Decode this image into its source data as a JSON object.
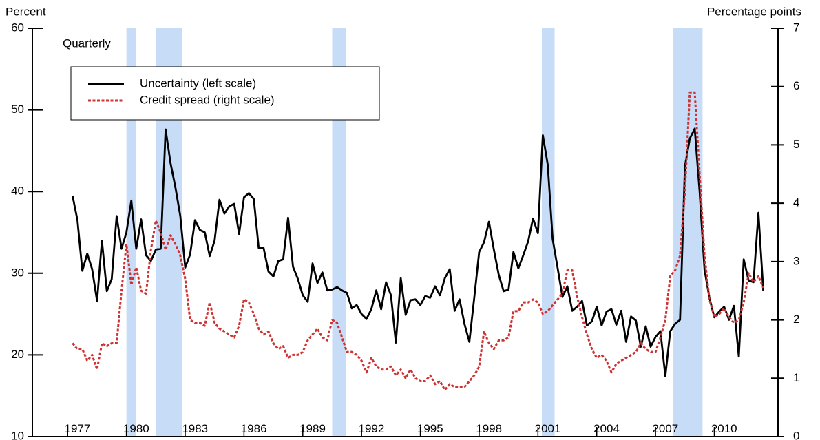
{
  "chart_data": {
    "type": "line",
    "y_label": "Percent",
    "y2_label": "Percentage points",
    "annotation": "Quarterly",
    "x": [
      1977.25,
      1977.5,
      1977.75,
      1978,
      1978.25,
      1978.5,
      1978.75,
      1979,
      1979.25,
      1979.5,
      1979.75,
      1980,
      1980.25,
      1980.5,
      1980.75,
      1981,
      1981.25,
      1981.5,
      1981.75,
      1982,
      1982.25,
      1982.5,
      1982.75,
      1983,
      1983.25,
      1983.5,
      1983.75,
      1984,
      1984.25,
      1984.5,
      1984.75,
      1985,
      1985.25,
      1985.5,
      1985.75,
      1986,
      1986.25,
      1986.5,
      1986.75,
      1987,
      1987.25,
      1987.5,
      1987.75,
      1988,
      1988.25,
      1988.5,
      1988.75,
      1989,
      1989.25,
      1989.5,
      1989.75,
      1990,
      1990.25,
      1990.5,
      1990.75,
      1991,
      1991.25,
      1991.5,
      1991.75,
      1992,
      1992.25,
      1992.5,
      1992.75,
      1993,
      1993.25,
      1993.5,
      1993.75,
      1994,
      1994.25,
      1994.5,
      1994.75,
      1995,
      1995.25,
      1995.5,
      1995.75,
      1996,
      1996.25,
      1996.5,
      1996.75,
      1997,
      1997.25,
      1997.5,
      1997.75,
      1998,
      1998.25,
      1998.5,
      1998.75,
      1999,
      1999.25,
      1999.5,
      1999.75,
      2000,
      2000.25,
      2000.5,
      2000.75,
      2001,
      2001.25,
      2001.5,
      2001.75,
      2002,
      2002.25,
      2002.5,
      2002.75,
      2003,
      2003.25,
      2003.5,
      2003.75,
      2004,
      2004.25,
      2004.5,
      2004.75,
      2005,
      2005.25,
      2005.5,
      2005.75,
      2006,
      2006.25,
      2006.5,
      2006.75,
      2007,
      2007.25,
      2007.5,
      2007.75,
      2008,
      2008.25,
      2008.5,
      2008.75,
      2009,
      2009.25,
      2009.5,
      2009.75,
      2010,
      2010.25,
      2010.5,
      2010.75,
      2011,
      2011.25,
      2011.5,
      2011.75,
      2012,
      2012.25,
      2012.5
    ],
    "series": [
      {
        "name": "Uncertainty (left scale)",
        "color": "#000000",
        "dash": "none",
        "values": [
          39.5,
          36.5,
          30.3,
          32.4,
          30.5,
          26.6,
          34.0,
          27.8,
          29.3,
          37.0,
          33.0,
          35.0,
          38.9,
          33.0,
          36.6,
          32.2,
          31.5,
          32.9,
          33.0,
          47.6,
          43.5,
          40.5,
          37.0,
          30.7,
          32.3,
          36.5,
          35.3,
          35.0,
          32.1,
          34.0,
          39.0,
          37.3,
          38.2,
          38.5,
          34.8,
          39.3,
          39.8,
          39.1,
          33.1,
          33.1,
          30.2,
          29.6,
          31.5,
          31.7,
          36.8,
          30.8,
          29.3,
          27.3,
          26.5,
          31.2,
          28.8,
          30.1,
          27.9,
          28.0,
          28.3,
          27.9,
          27.6,
          25.7,
          26.1,
          25.0,
          24.4,
          25.6,
          27.9,
          25.6,
          28.9,
          27.3,
          21.5,
          29.4,
          24.9,
          26.7,
          26.8,
          26.1,
          27.2,
          27.0,
          28.4,
          27.3,
          29.4,
          30.5,
          25.4,
          26.8,
          23.8,
          21.6,
          27.0,
          32.6,
          33.8,
          36.3,
          32.9,
          29.8,
          27.8,
          28.0,
          32.6,
          30.6,
          32.2,
          33.9,
          36.7,
          34.9,
          46.9,
          43.3,
          34.2,
          30.7,
          27.1,
          28.4,
          25.4,
          25.9,
          26.6,
          23.6,
          24.1,
          25.9,
          23.6,
          25.3,
          25.6,
          23.7,
          25.4,
          21.6,
          24.7,
          24.2,
          21.0,
          23.5,
          21.0,
          22.2,
          22.9,
          17.4,
          22.9,
          23.8,
          24.3,
          43.1,
          46.5,
          47.7,
          40.0,
          30.4,
          27.0,
          24.6,
          25.3,
          25.9,
          24.3,
          26.0,
          19.8,
          31.7,
          29.1,
          28.9,
          37.4,
          27.8
        ]
      },
      {
        "name": "Credit spread (right scale)",
        "color": "#cc3333",
        "dash": "4 2.5",
        "axis": "y2",
        "values": [
          1.6,
          1.5,
          1.5,
          1.3,
          1.4,
          1.15,
          1.6,
          1.55,
          1.6,
          1.6,
          2.5,
          3.3,
          2.6,
          2.9,
          2.5,
          2.45,
          3.2,
          3.7,
          3.5,
          3.2,
          3.45,
          3.3,
          3.1,
          2.7,
          2.0,
          1.95,
          1.95,
          1.9,
          2.3,
          1.95,
          1.85,
          1.8,
          1.75,
          1.7,
          1.9,
          2.35,
          2.3,
          2.1,
          1.85,
          1.75,
          1.8,
          1.6,
          1.5,
          1.55,
          1.35,
          1.4,
          1.4,
          1.45,
          1.65,
          1.75,
          1.85,
          1.7,
          1.65,
          2.0,
          1.95,
          1.7,
          1.45,
          1.45,
          1.4,
          1.3,
          1.1,
          1.35,
          1.2,
          1.15,
          1.15,
          1.2,
          1.05,
          1.15,
          1.0,
          1.15,
          1.0,
          0.95,
          0.95,
          1.05,
          0.9,
          0.95,
          0.8,
          0.9,
          0.85,
          0.85,
          0.85,
          0.95,
          1.05,
          1.2,
          1.8,
          1.6,
          1.5,
          1.65,
          1.65,
          1.7,
          2.15,
          2.15,
          2.3,
          2.3,
          2.35,
          2.3,
          2.1,
          2.15,
          2.25,
          2.35,
          2.45,
          2.85,
          2.85,
          2.4,
          2.05,
          1.75,
          1.5,
          1.35,
          1.4,
          1.3,
          1.1,
          1.25,
          1.3,
          1.35,
          1.4,
          1.45,
          1.6,
          1.5,
          1.45,
          1.45,
          1.7,
          2.0,
          2.75,
          2.85,
          3.1,
          4.2,
          5.9,
          5.9,
          4.5,
          3.1,
          2.35,
          2.05,
          2.1,
          2.2,
          2.05,
          1.95,
          2.0,
          2.3,
          2.8,
          2.65,
          2.75,
          2.55
        ]
      }
    ],
    "shaded_periods": [
      [
        1980.0,
        1980.5
      ],
      [
        1981.5,
        1982.85
      ],
      [
        1990.5,
        1991.2
      ],
      [
        2001.2,
        2001.85
      ],
      [
        2007.9,
        2009.4
      ]
    ],
    "shade_color": "#c6dcf7",
    "xlim": [
      1975.2,
      2013.25
    ],
    "xticks": [
      1977,
      1980,
      1983,
      1986,
      1989,
      1992,
      1995,
      1998,
      2001,
      2004,
      2007,
      2010
    ],
    "ylim": [
      10,
      60
    ],
    "yticks": [
      10,
      20,
      30,
      40,
      50,
      60
    ],
    "y2lim": [
      0,
      7
    ],
    "y2ticks": [
      0,
      1,
      2,
      3,
      4,
      5,
      6,
      7
    ]
  }
}
